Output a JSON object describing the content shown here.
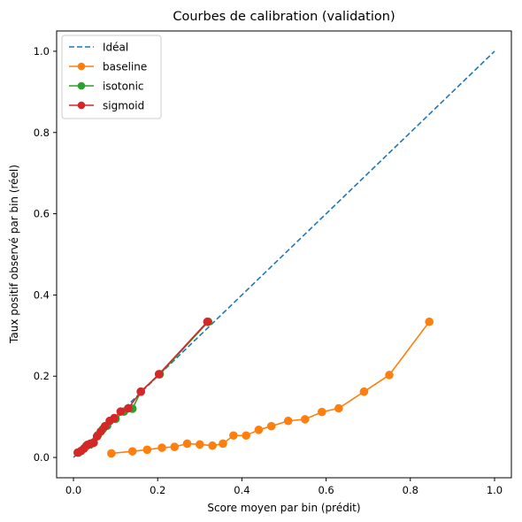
{
  "chart_data": {
    "type": "line",
    "title": "Courbes de calibration (validation)",
    "xlabel": "Score moyen par bin (prédit)",
    "ylabel": "Taux positif observé par bin (réel)",
    "xlim": [
      -0.04,
      1.04
    ],
    "ylim": [
      -0.05,
      1.05
    ],
    "xticks": [
      0.0,
      0.2,
      0.4,
      0.6,
      0.8,
      1.0
    ],
    "xtick_labels": [
      "0.0",
      "0.2",
      "0.4",
      "0.6",
      "0.8",
      "1.0"
    ],
    "yticks": [
      0.0,
      0.2,
      0.4,
      0.6,
      0.8,
      1.0
    ],
    "ytick_labels": [
      "0.0",
      "0.2",
      "0.4",
      "0.6",
      "0.8",
      "1.0"
    ],
    "grid": false,
    "legend_position": "top-left",
    "series": [
      {
        "name": "Idéal",
        "style": "dashed",
        "markers": false,
        "color": "#1f77b4",
        "x": [
          0.0,
          1.0
        ],
        "y": [
          0.0,
          1.0
        ]
      },
      {
        "name": "baseline",
        "style": "solid",
        "markers": true,
        "color": "#ff7f0e",
        "x": [
          0.09,
          0.14,
          0.175,
          0.21,
          0.24,
          0.27,
          0.3,
          0.33,
          0.355,
          0.38,
          0.41,
          0.44,
          0.47,
          0.51,
          0.55,
          0.59,
          0.63,
          0.69,
          0.75,
          0.845
        ],
        "y": [
          0.01,
          0.015,
          0.019,
          0.024,
          0.026,
          0.034,
          0.032,
          0.029,
          0.034,
          0.054,
          0.054,
          0.068,
          0.077,
          0.09,
          0.094,
          0.112,
          0.121,
          0.162,
          0.203,
          0.334
        ]
      },
      {
        "name": "isotonic",
        "style": "solid",
        "markers": true,
        "color": "#2ca02c",
        "x": [
          0.012,
          0.03,
          0.04,
          0.048,
          0.058,
          0.07,
          0.08,
          0.1,
          0.12,
          0.14,
          0.16,
          0.205,
          0.32
        ],
        "y": [
          0.012,
          0.028,
          0.032,
          0.037,
          0.055,
          0.07,
          0.078,
          0.095,
          0.113,
          0.12,
          0.162,
          0.205,
          0.334
        ]
      },
      {
        "name": "sigmoid",
        "style": "solid",
        "markers": true,
        "color": "#d62728",
        "x": [
          0.01,
          0.018,
          0.025,
          0.033,
          0.04,
          0.048,
          0.056,
          0.065,
          0.075,
          0.086,
          0.097,
          0.112,
          0.13,
          0.16,
          0.203,
          0.318
        ],
        "y": [
          0.012,
          0.016,
          0.022,
          0.031,
          0.034,
          0.036,
          0.052,
          0.064,
          0.077,
          0.09,
          0.097,
          0.113,
          0.121,
          0.162,
          0.205,
          0.334
        ]
      }
    ]
  }
}
